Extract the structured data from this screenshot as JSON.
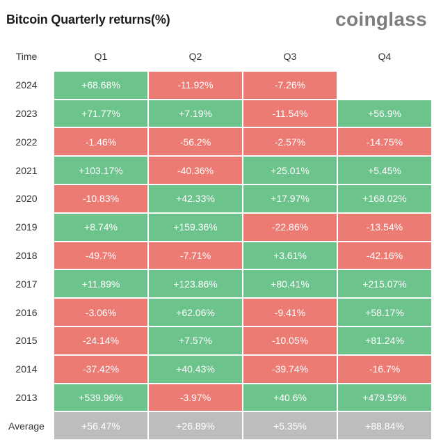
{
  "title": "Bitcoin Quarterly returns(%)",
  "brand": "coinglass",
  "colors": {
    "positive": "#6cc38b",
    "negative": "#ec7b74",
    "average": "#bdbdbd"
  },
  "chart_data": {
    "type": "table",
    "title": "Bitcoin Quarterly returns(%)",
    "columns": [
      "Time",
      "Q1",
      "Q2",
      "Q3",
      "Q4"
    ],
    "rows": [
      {
        "label": "2024",
        "values": [
          "+68.68%",
          "-11.92%",
          "-7.26%",
          ""
        ]
      },
      {
        "label": "2023",
        "values": [
          "+71.77%",
          "+7.19%",
          "-11.54%",
          "+56.9%"
        ]
      },
      {
        "label": "2022",
        "values": [
          "-1.46%",
          "-56.2%",
          "-2.57%",
          "-14.75%"
        ]
      },
      {
        "label": "2021",
        "values": [
          "+103.17%",
          "-40.36%",
          "+25.01%",
          "+5.45%"
        ]
      },
      {
        "label": "2020",
        "values": [
          "-10.83%",
          "+42.33%",
          "+17.97%",
          "+168.02%"
        ]
      },
      {
        "label": "2019",
        "values": [
          "+8.74%",
          "+159.36%",
          "-22.86%",
          "-13.54%"
        ]
      },
      {
        "label": "2018",
        "values": [
          "-49.7%",
          "-7.71%",
          "+3.61%",
          "-42.16%"
        ]
      },
      {
        "label": "2017",
        "values": [
          "+11.89%",
          "+123.86%",
          "+80.41%",
          "+215.07%"
        ]
      },
      {
        "label": "2016",
        "values": [
          "-3.06%",
          "+62.06%",
          "-9.41%",
          "+58.17%"
        ]
      },
      {
        "label": "2015",
        "values": [
          "-24.14%",
          "+7.57%",
          "-10.05%",
          "+81.24%"
        ]
      },
      {
        "label": "2014",
        "values": [
          "-37.42%",
          "+40.43%",
          "-39.74%",
          "-16.7%"
        ]
      },
      {
        "label": "2013",
        "values": [
          "+539.96%",
          "-3.97%",
          "+40.6%",
          "+479.59%"
        ]
      }
    ],
    "average": {
      "label": "Average",
      "values": [
        "+56.47%",
        "+26.89%",
        "+5.35%",
        "+88.84%"
      ]
    }
  }
}
